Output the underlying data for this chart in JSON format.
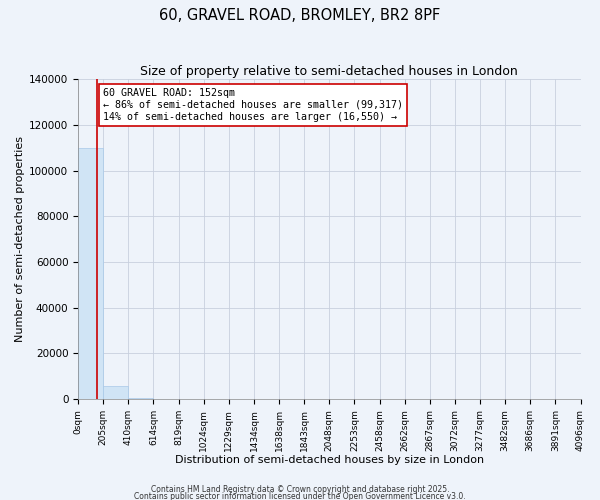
{
  "title": "60, GRAVEL ROAD, BROMLEY, BR2 8PF",
  "subtitle": "Size of property relative to semi-detached houses in London",
  "xlabel": "Distribution of semi-detached houses by size in London",
  "ylabel": "Number of semi-detached properties",
  "bar_color": "#d0e4f5",
  "bar_edge_color": "#a8c8e8",
  "red_line_x": 152,
  "red_line_color": "#cc0000",
  "annotation_text": "60 GRAVEL ROAD: 152sqm\n← 86% of semi-detached houses are smaller (99,317)\n14% of semi-detached houses are larger (16,550) →",
  "annotation_box_color": "white",
  "annotation_box_edge": "#cc0000",
  "xlim": [
    0,
    4096
  ],
  "ylim": [
    0,
    140000
  ],
  "yticks": [
    0,
    20000,
    40000,
    60000,
    80000,
    100000,
    120000,
    140000
  ],
  "xtick_labels": [
    "0sqm",
    "205sqm",
    "410sqm",
    "614sqm",
    "819sqm",
    "1024sqm",
    "1229sqm",
    "1434sqm",
    "1638sqm",
    "1843sqm",
    "2048sqm",
    "2253sqm",
    "2458sqm",
    "2662sqm",
    "2867sqm",
    "3072sqm",
    "3277sqm",
    "3482sqm",
    "3686sqm",
    "3891sqm",
    "4096sqm"
  ],
  "xtick_positions": [
    0,
    205,
    410,
    614,
    819,
    1024,
    1229,
    1434,
    1638,
    1843,
    2048,
    2253,
    2458,
    2662,
    2867,
    3072,
    3277,
    3482,
    3686,
    3891,
    4096
  ],
  "bin_edges": [
    0,
    205,
    410,
    614,
    819,
    1024,
    1229,
    1434,
    1638,
    1843,
    2048,
    2253,
    2458,
    2662,
    2867,
    3072,
    3277,
    3482,
    3686,
    3891,
    4096
  ],
  "bin_heights": [
    110000,
    5800,
    480,
    140,
    75,
    38,
    22,
    14,
    9,
    7,
    5,
    4,
    3,
    3,
    2,
    2,
    1,
    1,
    1,
    1
  ],
  "footer_text1": "Contains HM Land Registry data © Crown copyright and database right 2025.",
  "footer_text2": "Contains public sector information licensed under the Open Government Licence v3.0.",
  "background_color": "#eef3fa",
  "plot_bg_color": "#eef3fa",
  "grid_color": "#c8d0de"
}
